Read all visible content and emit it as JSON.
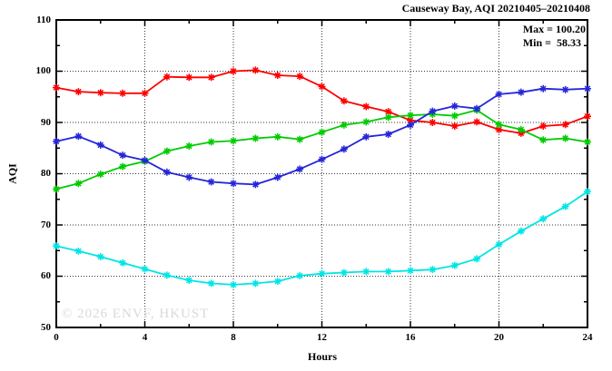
{
  "title": "Causeway Bay, AQI 20210405–20210408",
  "legend": {
    "max_label": "Max = 100.20",
    "min_label": "Min =  58.33"
  },
  "watermark": "© 2026 ENVF, HKUST",
  "axes": {
    "ylabel": "AQI",
    "xlabel": "Hours",
    "y_ticks": [
      50,
      60,
      70,
      80,
      90,
      100,
      110
    ],
    "x_ticks": [
      0,
      4,
      8,
      12,
      16,
      20,
      24
    ],
    "y_minor_step": 5,
    "x_minor_step": 2
  },
  "chart_data": {
    "type": "line",
    "title": "Causeway Bay, AQI 20210405–20210408",
    "xlabel": "Hours",
    "ylabel": "AQI",
    "xlim": [
      0,
      24
    ],
    "ylim": [
      50,
      110
    ],
    "grid": true,
    "marker": "asterisk",
    "legend_position": "top-right-inside",
    "annotations": {
      "max": 100.2,
      "min": 58.33
    },
    "x": [
      0,
      1,
      2,
      3,
      4,
      5,
      6,
      7,
      8,
      9,
      10,
      11,
      12,
      13,
      14,
      15,
      16,
      17,
      18,
      19,
      20,
      21,
      22,
      23,
      24
    ],
    "series": [
      {
        "name": "series-red",
        "color": "#ff0000",
        "values": [
          96.8,
          96.0,
          95.8,
          95.7,
          95.7,
          98.9,
          98.8,
          98.8,
          100.0,
          100.2,
          99.2,
          99.0,
          97.0,
          94.2,
          93.1,
          92.1,
          90.4,
          90.0,
          89.3,
          90.1,
          88.6,
          87.9,
          89.3,
          89.6,
          91.2
        ]
      },
      {
        "name": "series-green",
        "color": "#00cc00",
        "values": [
          77.0,
          78.1,
          79.9,
          81.4,
          82.4,
          84.4,
          85.4,
          86.2,
          86.4,
          86.9,
          87.2,
          86.7,
          88.1,
          89.5,
          90.1,
          91.0,
          91.4,
          91.6,
          91.3,
          92.4,
          89.6,
          88.6,
          86.6,
          86.9,
          86.2
        ]
      },
      {
        "name": "series-blue",
        "color": "#2525d9",
        "values": [
          86.3,
          87.3,
          85.6,
          83.6,
          82.6,
          80.3,
          79.3,
          78.4,
          78.1,
          77.9,
          79.3,
          80.9,
          82.8,
          84.8,
          87.2,
          87.7,
          89.5,
          92.2,
          93.2,
          92.7,
          95.5,
          95.9,
          96.6,
          96.4,
          96.6
        ]
      },
      {
        "name": "series-cyan",
        "color": "#00e5e5",
        "values": [
          65.9,
          64.9,
          63.8,
          62.6,
          61.4,
          60.2,
          59.2,
          58.6,
          58.33,
          58.6,
          59.0,
          60.1,
          60.5,
          60.7,
          60.9,
          60.9,
          61.1,
          61.3,
          62.1,
          63.4,
          66.2,
          68.8,
          71.2,
          73.6,
          76.5
        ]
      }
    ]
  }
}
